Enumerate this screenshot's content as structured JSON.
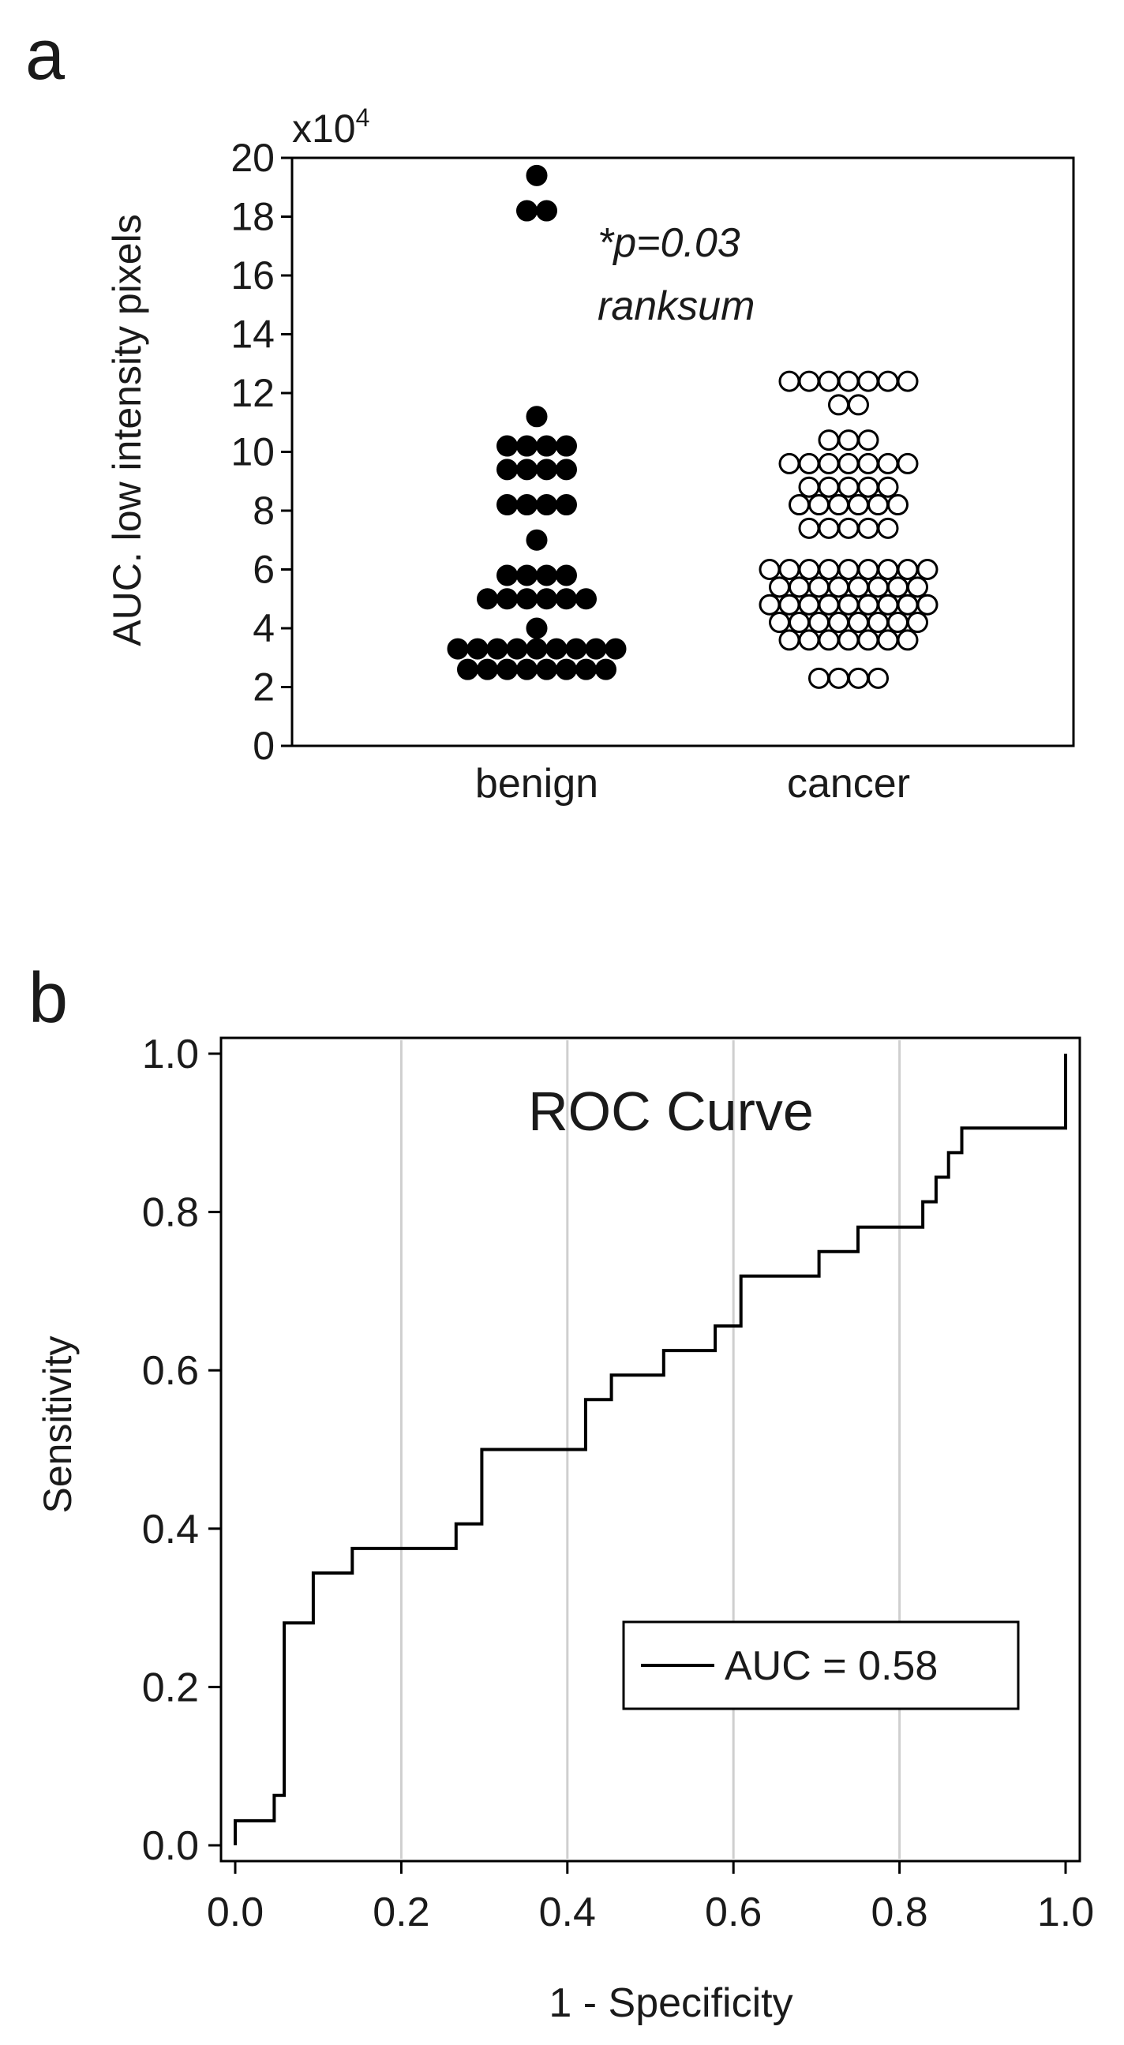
{
  "chart_data": [
    {
      "type": "scatter",
      "panel_label": "a",
      "ylabel": "AUC. low intensity pixels",
      "y_multiplier": "x10",
      "y_multiplier_exp": "4",
      "ylim": [
        0,
        20
      ],
      "yticks": [
        "0",
        "2",
        "4",
        "6",
        "8",
        "10",
        "12",
        "14",
        "16",
        "18",
        "20"
      ],
      "categories": [
        "benign",
        "cancer"
      ],
      "annotation": [
        "*p=0.03",
        "ranksum"
      ],
      "series": [
        {
          "category": "benign",
          "marker": "filled",
          "color": "#000000",
          "rows": [
            {
              "y": 19.4,
              "n": 1
            },
            {
              "y": 18.2,
              "n": 2
            },
            {
              "y": 11.2,
              "n": 1
            },
            {
              "y": 10.2,
              "n": 4
            },
            {
              "y": 9.4,
              "n": 4
            },
            {
              "y": 8.2,
              "n": 4
            },
            {
              "y": 7.0,
              "n": 1
            },
            {
              "y": 5.8,
              "n": 4
            },
            {
              "y": 5.0,
              "n": 6
            },
            {
              "y": 4.0,
              "n": 1
            },
            {
              "y": 3.3,
              "n": 9
            },
            {
              "y": 2.6,
              "n": 8
            }
          ]
        },
        {
          "category": "cancer",
          "marker": "hollow",
          "color": "#000000",
          "rows": [
            {
              "y": 12.4,
              "n": 7
            },
            {
              "y": 11.6,
              "n": 2
            },
            {
              "y": 10.4,
              "n": 3
            },
            {
              "y": 9.6,
              "n": 7
            },
            {
              "y": 8.8,
              "n": 5
            },
            {
              "y": 8.2,
              "n": 6
            },
            {
              "y": 7.4,
              "n": 5
            },
            {
              "y": 6.0,
              "n": 9
            },
            {
              "y": 5.4,
              "n": 8
            },
            {
              "y": 4.8,
              "n": 9
            },
            {
              "y": 4.2,
              "n": 8
            },
            {
              "y": 3.6,
              "n": 7
            },
            {
              "y": 2.3,
              "n": 4
            }
          ]
        }
      ]
    },
    {
      "type": "line",
      "panel_label": "b",
      "title": "ROC Curve",
      "xlabel": "1 - Specificity",
      "ylabel": "Sensitivity",
      "xlim": [
        0,
        1
      ],
      "ylim": [
        0,
        1
      ],
      "xticks": [
        "0.0",
        "0.2",
        "0.4",
        "0.6",
        "0.8",
        "1.0"
      ],
      "yticks": [
        "0.0",
        "0.2",
        "0.4",
        "0.6",
        "0.8",
        "1.0"
      ],
      "grid": "vertical",
      "legend": {
        "position": "lower-right",
        "label": "AUC = 0.58"
      },
      "series": [
        {
          "name": "AUC = 0.58",
          "color": "#000000",
          "x": [
            0.0,
            0.0,
            0.047,
            0.047,
            0.059,
            0.059,
            0.094,
            0.094,
            0.141,
            0.141,
            0.266,
            0.266,
            0.297,
            0.297,
            0.422,
            0.422,
            0.453,
            0.453,
            0.516,
            0.516,
            0.578,
            0.578,
            0.609,
            0.609,
            0.703,
            0.703,
            0.75,
            0.75,
            0.828,
            0.828,
            0.844,
            0.844,
            0.859,
            0.859,
            0.875,
            0.875,
            1.0,
            1.0
          ],
          "y": [
            0.0,
            0.031,
            0.031,
            0.063,
            0.063,
            0.281,
            0.281,
            0.344,
            0.344,
            0.375,
            0.375,
            0.406,
            0.406,
            0.5,
            0.5,
            0.563,
            0.563,
            0.594,
            0.594,
            0.625,
            0.625,
            0.656,
            0.656,
            0.719,
            0.719,
            0.75,
            0.75,
            0.781,
            0.781,
            0.813,
            0.813,
            0.844,
            0.844,
            0.875,
            0.875,
            0.906,
            0.906,
            1.0
          ]
        }
      ]
    }
  ]
}
